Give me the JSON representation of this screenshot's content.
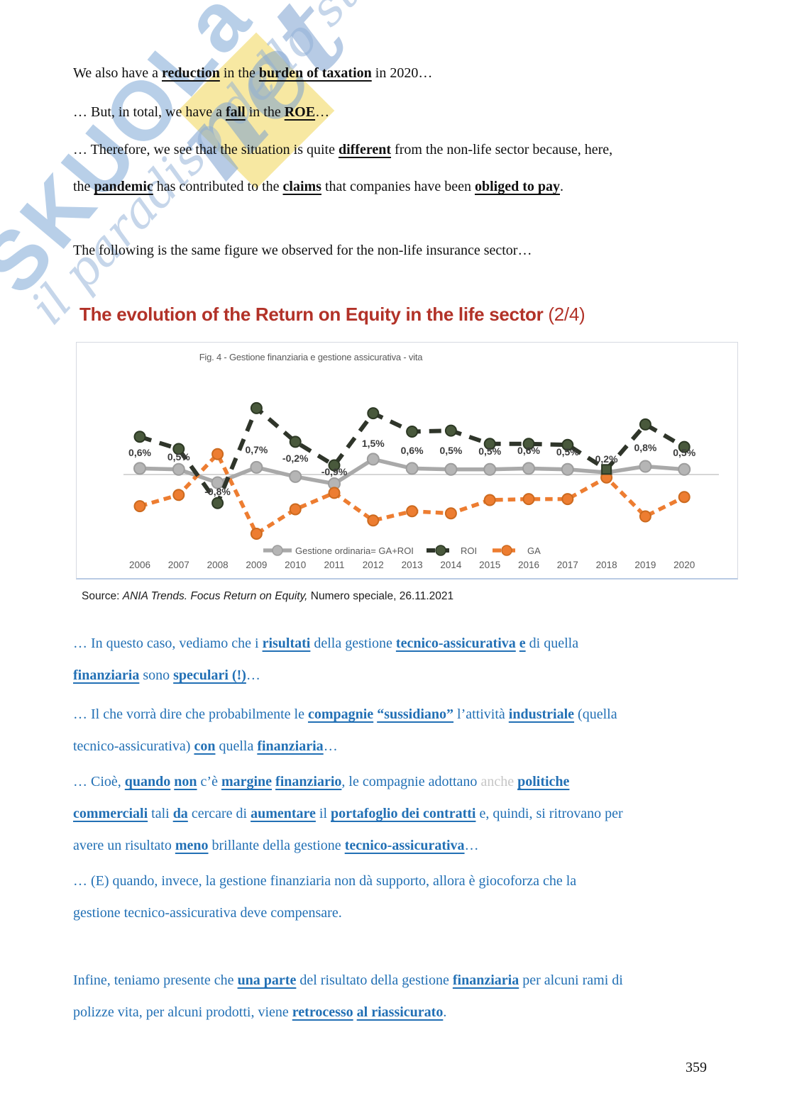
{
  "watermark": {
    "brand": "SKUOLa",
    "brand_suffix": "net",
    "tagline": "il paradiso dello studente",
    "colors": {
      "blue": "#a0bfe0",
      "yellow": "#f7e79d"
    }
  },
  "intro": {
    "p1": [
      {
        "t": "We also have a "
      },
      {
        "t": "reduction",
        "b": 1,
        "u": 1
      },
      {
        "t": " in the "
      },
      {
        "t": "burden of taxation",
        "b": 1,
        "u": 1
      },
      {
        "t": " in 2020…"
      }
    ],
    "p2": [
      {
        "t": "… But, in total, we have a "
      },
      {
        "t": "fall",
        "b": 1,
        "u": 1
      },
      {
        "t": " in the "
      },
      {
        "t": "ROE",
        "b": 1,
        "u": 1
      },
      {
        "t": "…"
      }
    ],
    "p3": [
      {
        "t": "… Therefore, we see that the situation is quite "
      },
      {
        "t": "different",
        "b": 1,
        "u": 1
      },
      {
        "t": " from the non-life sector because, here,"
      },
      {
        "br": 1
      },
      {
        "t": "the "
      },
      {
        "t": "pandemic",
        "b": 1,
        "u": 1
      },
      {
        "t": " has contributed to the "
      },
      {
        "t": "claims",
        "b": 1,
        "u": 1
      },
      {
        "t": " that companies have been "
      },
      {
        "t": "obliged to pay",
        "b": 1,
        "u": 1
      },
      {
        "t": "."
      }
    ],
    "p4": [
      {
        "t": "The following is the same figure we observed for the non-life insurance sector…"
      }
    ]
  },
  "slide": {
    "title_main": "The evolution of the Return on Equity in the life sector",
    "title_suffix": " (2/4)",
    "title_color": "#b23228"
  },
  "figure": {
    "title": "Fig. 4 - Gestione finanziaria e gestione assicurativa - vita",
    "source": [
      {
        "t": "Source: "
      },
      {
        "t": "ANIA Trends. Focus Return on Equity,",
        "i": 1
      },
      {
        "t": " Numero speciale, 26.11.2021"
      }
    ]
  },
  "chart_data": {
    "type": "line",
    "title": "Fig. 4 - Gestione finanziaria e gestione assicurativa - vita",
    "categories": [
      "2006",
      "2007",
      "2008",
      "2009",
      "2010",
      "2011",
      "2012",
      "2013",
      "2014",
      "2015",
      "2016",
      "2017",
      "2018",
      "2019",
      "2020"
    ],
    "series": [
      {
        "name": "Gestione ordinaria= GA+ROI",
        "values": [
          0.6,
          0.5,
          -0.8,
          0.7,
          -0.2,
          -0.9,
          1.5,
          0.6,
          0.5,
          0.5,
          0.6,
          0.5,
          0.2,
          0.8,
          0.5
        ],
        "labels": [
          "0,6%",
          "0,5%",
          "-0,8%",
          "0,7%",
          "-0,2%",
          "-0,9%",
          "1,5%",
          "0,6%",
          "0,5%",
          "0,5%",
          "0,6%",
          "0,5%",
          "0,2%",
          "0,8%",
          "0,5%"
        ],
        "color": "#a9a9a9",
        "marker_fill": "#b5b5b5",
        "marker_stroke": "#9d9d9d",
        "dash": "",
        "width": 5.5,
        "marker_r": 8
      },
      {
        "name": "ROI",
        "values": [
          3.7,
          2.5,
          -2.8,
          6.5,
          3.2,
          0.9,
          6.0,
          4.2,
          4.3,
          3.0,
          3.0,
          2.9,
          0.5,
          4.9,
          2.7
        ],
        "color": "#2f352a",
        "marker_fill": "#49593c",
        "marker_stroke": "#2c3824",
        "dash": "17 12",
        "width": 6,
        "marker_r": 7.5,
        "square_marker_index": 12
      },
      {
        "name": "GA",
        "values": [
          -3.1,
          -2.0,
          2.0,
          -5.8,
          -3.4,
          -1.8,
          -4.5,
          -3.6,
          -3.8,
          -2.5,
          -2.4,
          -2.4,
          -0.3,
          -4.1,
          -2.2
        ],
        "color": "#ed7d31",
        "marker_fill": "#ed7d31",
        "marker_stroke": "#cc6a1f",
        "dash": "10.5 7",
        "width": 5.5,
        "marker_r": 7.5
      }
    ],
    "ylim": [
      -6.5,
      7.5
    ],
    "grid": false,
    "zero_line": true,
    "legend_position": "bottom",
    "xlabel": "",
    "ylabel": "",
    "label_dy": [
      -31,
      -25,
      24,
      -35,
      -23,
      -4,
      -44,
      -34,
      -34,
      -33,
      -34,
      -32,
      -22,
      -38,
      -31
    ],
    "style_hints": {
      "label_color": "#3c3c3c",
      "axis_color": "#595959",
      "zero_line_color": "#c9c9c9",
      "legend_color": "#595959"
    }
  },
  "commentary": {
    "p1": [
      {
        "t": "… In questo caso, vediamo che i "
      },
      {
        "t": "risultati",
        "b": 1,
        "u": 1
      },
      {
        "t": " della gestione "
      },
      {
        "t": "tecnico-assicurativa",
        "b": 1,
        "u": 1
      },
      {
        "t": " "
      },
      {
        "t": "e",
        "b": 1,
        "u": 1
      },
      {
        "t": " di quella"
      },
      {
        "br": 1
      },
      {
        "t": "finanziaria",
        "b": 1,
        "u": 1
      },
      {
        "t": " sono "
      },
      {
        "t": "speculari (!)",
        "b": 1,
        "u": 1
      },
      {
        "t": "…"
      }
    ],
    "p2": [
      {
        "t": "… Il che vorrà dire che probabilmente le "
      },
      {
        "t": "compagnie",
        "b": 1,
        "u": 1
      },
      {
        "t": " "
      },
      {
        "t": "“sussidiano”",
        "b": 1,
        "u": 1
      },
      {
        "t": " l’attività "
      },
      {
        "t": "industriale",
        "b": 1,
        "u": 1
      },
      {
        "t": " (quella"
      },
      {
        "br": 1
      },
      {
        "t": "tecnico-assicurativa) "
      },
      {
        "t": "con",
        "b": 1,
        "u": 1
      },
      {
        "t": " quella "
      },
      {
        "t": "finanziaria",
        "b": 1,
        "u": 1
      },
      {
        "t": "…"
      }
    ],
    "p3": [
      {
        "t": "… Cioè, "
      },
      {
        "t": "quando",
        "b": 1,
        "u": 1
      },
      {
        "t": " "
      },
      {
        "t": "non",
        "b": 1,
        "u": 1
      },
      {
        "t": " c’è "
      },
      {
        "t": "margine",
        "b": 1,
        "u": 1
      },
      {
        "t": " "
      },
      {
        "t": "finanziario",
        "b": 1,
        "u": 1
      },
      {
        "t": ", le compagnie adottano "
      },
      {
        "t": "anche",
        "g": 1
      },
      {
        "t": " "
      },
      {
        "t": "politiche",
        "b": 1,
        "u": 1
      },
      {
        "br": 1
      },
      {
        "t": "commerciali",
        "b": 1,
        "u": 1
      },
      {
        "t": " tali "
      },
      {
        "t": "da",
        "b": 1,
        "u": 1
      },
      {
        "t": " cercare di "
      },
      {
        "t": "aumentare",
        "b": 1,
        "u": 1
      },
      {
        "t": " il "
      },
      {
        "t": "portafoglio dei contratti",
        "b": 1,
        "u": 1
      },
      {
        "t": " e, quindi, si ritrovano per"
      },
      {
        "br": 1
      },
      {
        "t": "avere un risultato "
      },
      {
        "t": "meno",
        "b": 1,
        "u": 1
      },
      {
        "t": " brillante della gestione "
      },
      {
        "t": "tecnico-assicurativa",
        "b": 1,
        "u": 1
      },
      {
        "t": "…"
      }
    ],
    "p4": [
      {
        "t": "… (E) quando, invece, la gestione finanziaria non dà supporto, allora è giocoforza che la"
      },
      {
        "br": 1
      },
      {
        "t": "gestione tecnico-assicurativa deve compensare."
      }
    ],
    "p5": [
      {
        "t": "Infine, teniamo presente che "
      },
      {
        "t": "una parte",
        "b": 1,
        "u": 1
      },
      {
        "t": " del risultato della gestione "
      },
      {
        "t": "finanziaria",
        "b": 1,
        "u": 1
      },
      {
        "t": " per alcuni rami di"
      },
      {
        "br": 1
      },
      {
        "t": "polizze vita, per alcuni prodotti, viene "
      },
      {
        "t": "retrocesso",
        "b": 1,
        "u": 1
      },
      {
        "t": " "
      },
      {
        "t": "al riassicurato",
        "b": 1,
        "u": 1
      },
      {
        "t": "."
      }
    ]
  },
  "page": {
    "number": "359"
  }
}
